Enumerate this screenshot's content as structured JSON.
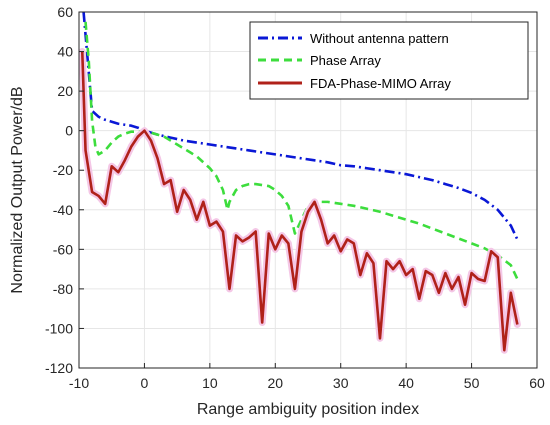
{
  "chart_data": {
    "type": "line",
    "title": "",
    "xlabel": "Range ambiguity position index",
    "ylabel": "Normalized Output Power/dB",
    "xlim": [
      -10,
      60
    ],
    "ylim": [
      -120,
      60
    ],
    "xticks": [
      -10,
      0,
      10,
      20,
      30,
      40,
      50,
      60
    ],
    "yticks": [
      -120,
      -100,
      -80,
      -60,
      -40,
      -20,
      0,
      20,
      40,
      60
    ],
    "grid": true,
    "legend_position": "top-right",
    "series": [
      {
        "name": "Without antenna pattern",
        "color": "#0a18d6",
        "style": "dashdot",
        "x": [
          -9.3,
          -8,
          -7,
          -6,
          -5,
          -4,
          -3,
          -2,
          -1,
          0,
          2,
          4,
          6,
          8,
          10,
          12,
          14,
          16,
          18,
          20,
          22,
          24,
          26,
          28,
          30,
          32,
          34,
          36,
          38,
          40,
          42,
          44,
          46,
          48,
          50,
          52,
          54,
          55,
          56,
          57
        ],
        "y": [
          60,
          10,
          7,
          5.5,
          4.5,
          3.5,
          3,
          2.5,
          1.5,
          0,
          -2,
          -3.5,
          -5,
          -6,
          -7,
          -8,
          -9,
          -10,
          -11,
          -12,
          -13,
          -14,
          -15,
          -16,
          -17.5,
          -18,
          -19,
          -20,
          -21,
          -22,
          -23.5,
          -25,
          -27,
          -29,
          -31.5,
          -35,
          -40,
          -44,
          -48,
          -55
        ]
      },
      {
        "name": "Phase Array",
        "color": "#3ddd3d",
        "style": "dashed",
        "x": [
          -9,
          -8.5,
          -8,
          -7.5,
          -7,
          -6,
          -5,
          -4,
          -3,
          -2,
          -1,
          0,
          1,
          2,
          3,
          4,
          5,
          6,
          7,
          8,
          9,
          10,
          11,
          12,
          12.7,
          13,
          14,
          15,
          16,
          17,
          18,
          19,
          20,
          21,
          22,
          23,
          24,
          25,
          26,
          28,
          30,
          32,
          34,
          36,
          38,
          40,
          42,
          44,
          46,
          48,
          50,
          52,
          54,
          56,
          57
        ],
        "y": [
          55,
          35,
          5,
          -8,
          -12,
          -10,
          -6,
          -3,
          -1.5,
          -0.5,
          -0.5,
          0,
          -1,
          -2,
          -3,
          -5,
          -7,
          -9,
          -11,
          -13,
          -16,
          -19,
          -23,
          -30,
          -40,
          -36,
          -30,
          -28,
          -27,
          -27,
          -27.5,
          -28,
          -30,
          -33,
          -38,
          -52,
          -45,
          -38,
          -36,
          -36,
          -37,
          -38,
          -39.5,
          -41,
          -43,
          -45,
          -47,
          -49.5,
          -52,
          -54.5,
          -57,
          -59.5,
          -63,
          -68,
          -75
        ]
      },
      {
        "name": "FDA-Phase-MIMO Array",
        "color": "#b0211a",
        "style": "solid",
        "x": [
          -9.5,
          -9,
          -8,
          -7,
          -6,
          -5,
          -4,
          -3,
          -2,
          -1,
          0,
          1,
          2,
          3,
          4,
          5,
          6,
          7,
          8,
          9,
          10,
          11,
          12,
          13,
          14,
          15,
          16,
          17,
          18,
          19,
          20,
          21,
          22,
          23,
          24,
          25,
          26,
          27,
          28,
          29,
          30,
          31,
          32,
          33,
          34,
          35,
          36,
          37,
          38,
          39,
          40,
          41,
          42,
          43,
          44,
          45,
          46,
          47,
          48,
          49,
          50,
          51,
          52,
          53,
          54,
          55,
          56,
          57
        ],
        "y": [
          40,
          -10,
          -31,
          -33,
          -37,
          -18,
          -21,
          -15,
          -8,
          -3,
          0,
          -5,
          -14,
          -27,
          -25,
          -41,
          -30,
          -35,
          -45,
          -36,
          -48,
          -46,
          -51,
          -80,
          -53,
          -56,
          -54,
          -51,
          -97,
          -52,
          -60,
          -53,
          -57,
          -80,
          -51,
          -41,
          -36,
          -45,
          -57,
          -53,
          -61,
          -55,
          -57,
          -73,
          -62,
          -67,
          -105,
          -66,
          -70,
          -66,
          -73,
          -70,
          -85,
          -71,
          -73,
          -82,
          -72,
          -80,
          -74,
          -88,
          -72,
          -75,
          -76,
          -61,
          -64,
          -111,
          -82,
          -98
        ]
      }
    ]
  }
}
